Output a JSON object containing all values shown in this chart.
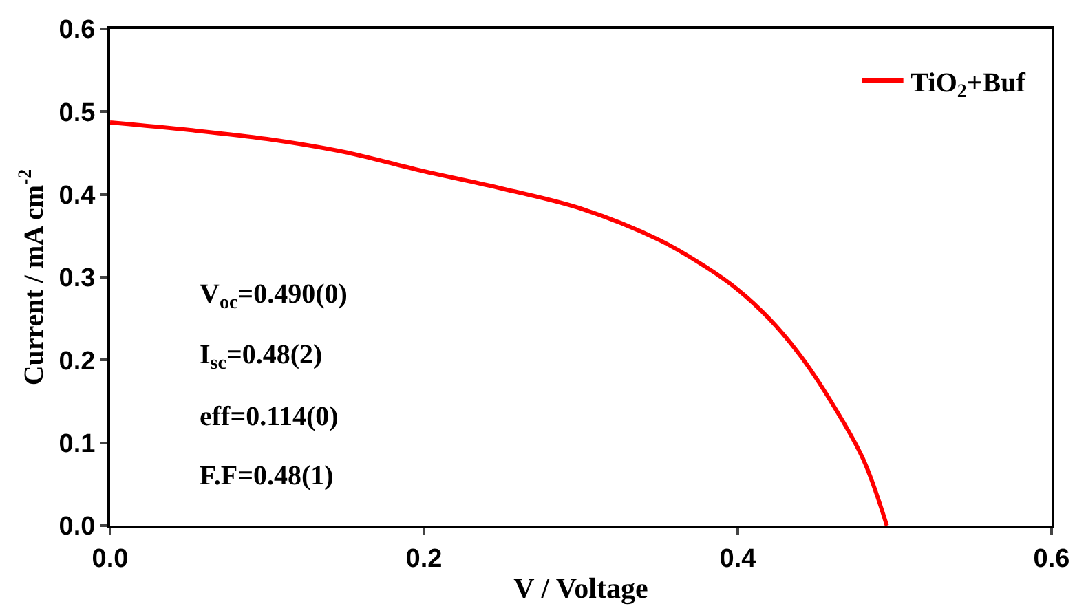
{
  "chart_data": {
    "type": "line",
    "xlabel": "V / Voltage",
    "ylabel": "Current / mA cm$^{-2}$",
    "x": [
      0,
      0.05,
      0.1,
      0.15,
      0.2,
      0.25,
      0.3,
      0.35,
      0.38,
      0.4,
      0.42,
      0.44,
      0.46,
      0.48,
      0.495
    ],
    "series": [
      {
        "name": "TiO$_{2}$+Buf",
        "color": "#ff0000",
        "values": [
          0.487,
          0.478,
          0.467,
          0.451,
          0.428,
          0.407,
          0.383,
          0.345,
          0.312,
          0.285,
          0.25,
          0.205,
          0.148,
          0.08,
          0.0
        ]
      }
    ],
    "xlim": [
      0,
      0.6
    ],
    "ylim": [
      0,
      0.6
    ],
    "xticks": [
      {
        "value": 0,
        "label": "0.0"
      },
      0.2,
      0.4,
      0.6
    ],
    "yticks": [
      {
        "value": 0,
        "label": "0.0"
      },
      0.1,
      0.2,
      0.3,
      0.4,
      0.5,
      0.6
    ],
    "annotations": [
      "V$_{oc}$=0.490(0)",
      "I$_{sc}$=0.48(2)",
      "eff=0.114(0)",
      "F.F=0.48(1)"
    ],
    "legend": "top right",
    "marker": "none",
    "line_style": "solid"
  }
}
